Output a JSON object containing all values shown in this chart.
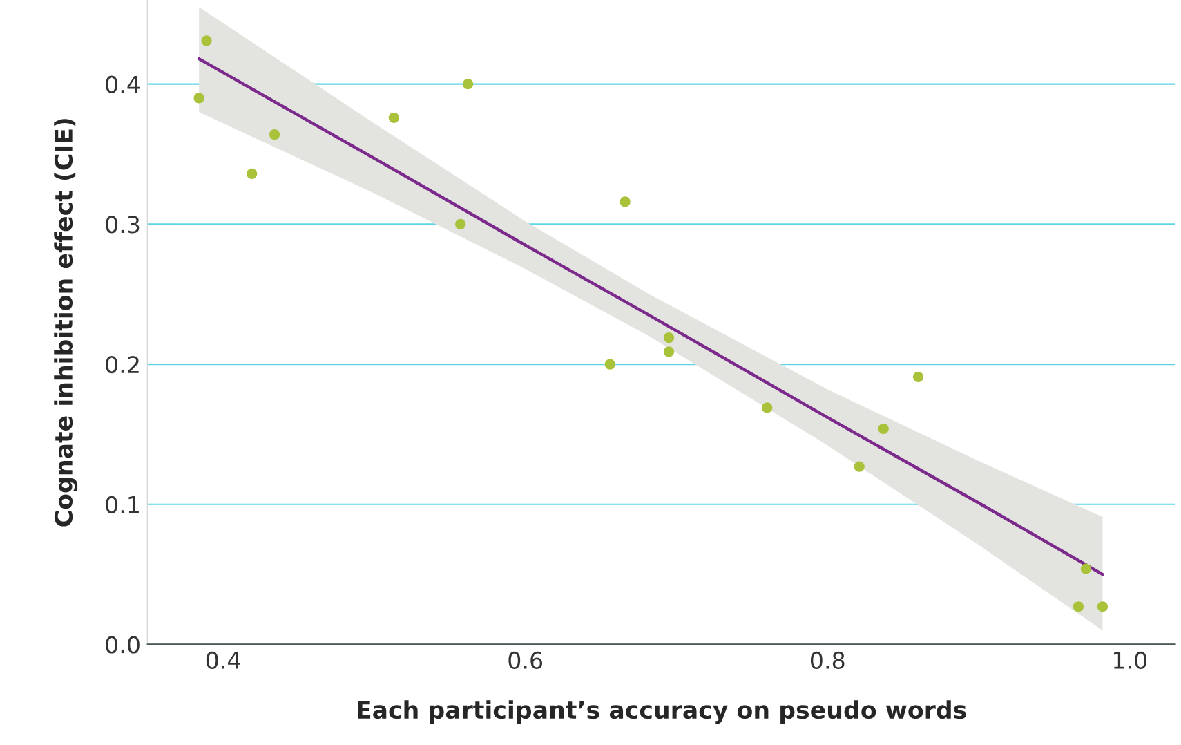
{
  "chart_data": {
    "type": "scatter",
    "xlabel": "Each participant’s accuracy on pseudo words",
    "ylabel": "Cognate inhibition effect (CIE)",
    "series": [
      {
        "marker": "circle",
        "color": "#a8c23a",
        "x": [
          0.384,
          0.389,
          0.419,
          0.434,
          0.513,
          0.557,
          0.562,
          0.666,
          0.656,
          0.695,
          0.695,
          0.76,
          0.821,
          0.837,
          0.86,
          0.966,
          0.971,
          0.982
        ],
        "values": [
          0.39,
          0.431,
          0.336,
          0.364,
          0.376,
          0.3,
          0.4,
          0.316,
          0.2,
          0.219,
          0.209,
          0.169,
          0.127,
          0.154,
          0.191,
          0.027,
          0.054,
          0.027
        ]
      },
      {
        "type": "line",
        "color": "#7b2a8c",
        "x": [
          0.384,
          0.5,
          0.6,
          0.682,
          0.8,
          0.9,
          0.982
        ],
        "values": [
          0.418,
          0.347,
          0.285,
          0.235,
          0.162,
          0.101,
          0.05
        ],
        "lower": [
          0.38,
          0.322,
          0.268,
          0.22,
          0.142,
          0.071,
          0.01
        ],
        "upper": [
          0.455,
          0.372,
          0.302,
          0.25,
          0.182,
          0.131,
          0.091
        ]
      }
    ],
    "xlim": [
      0.35,
      1.03
    ],
    "ylim": [
      0,
      0.46
    ],
    "xticks": [
      0.4,
      0.6,
      0.8,
      {
        "value": 1,
        "label": "1.0"
      }
    ],
    "yticks": [
      {
        "value": 0,
        "label": "0.0"
      },
      0.1,
      0.2,
      0.3,
      0.4
    ],
    "grid": "y",
    "line_style": "solid"
  }
}
